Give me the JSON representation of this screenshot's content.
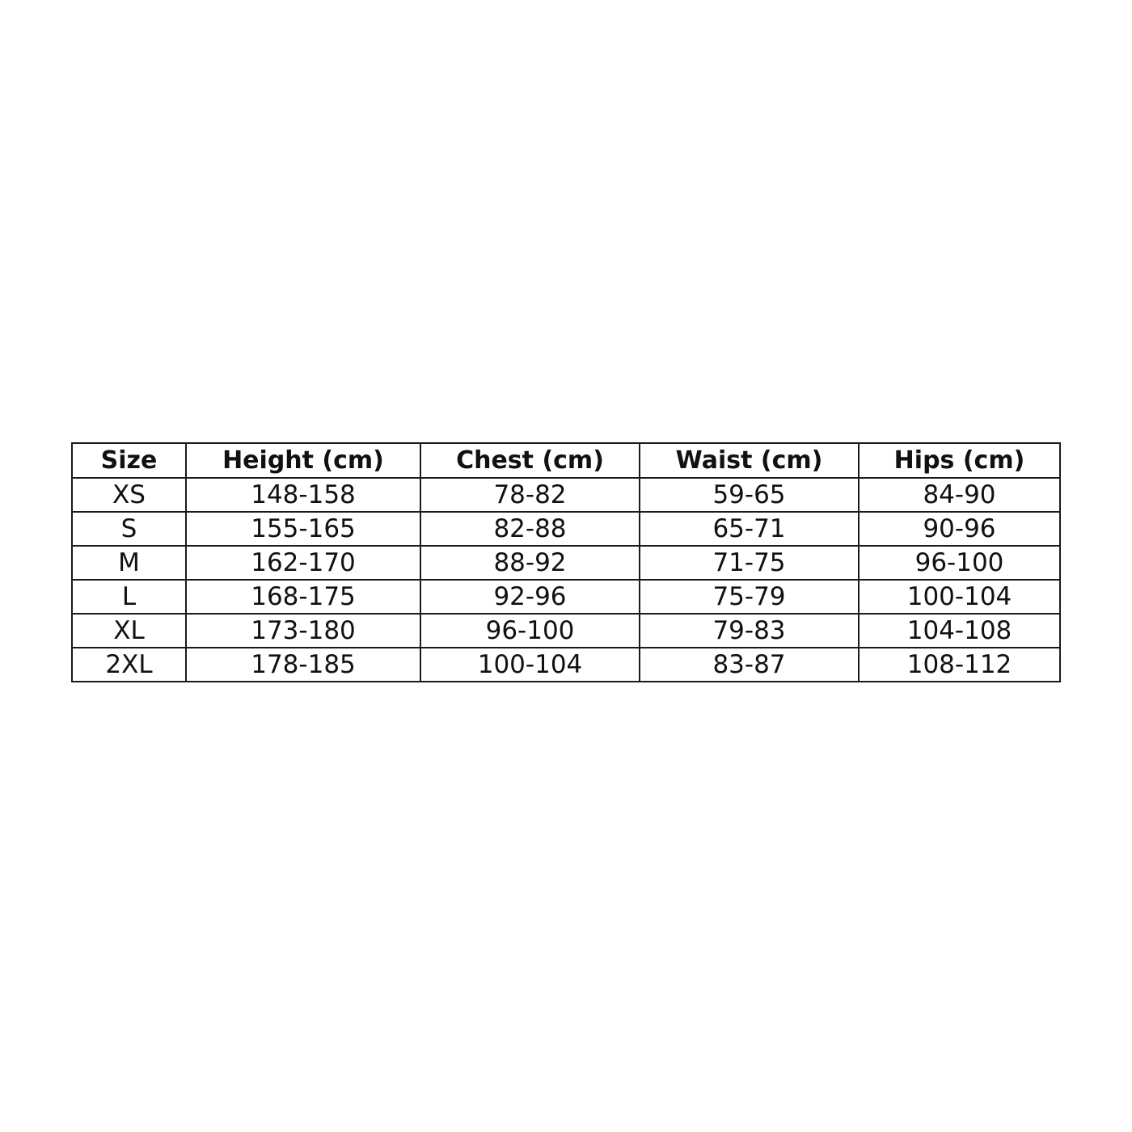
{
  "size_chart": {
    "headers": [
      "Size",
      "Height (cm)",
      "Chest (cm)",
      "Waist (cm)",
      "Hips (cm)"
    ],
    "rows": [
      [
        "XS",
        "148-158",
        "78-82",
        "59-65",
        "84-90"
      ],
      [
        "S",
        "155-165",
        "82-88",
        "65-71",
        "90-96"
      ],
      [
        "M",
        "162-170",
        "88-92",
        "71-75",
        "96-100"
      ],
      [
        "L",
        "168-175",
        "92-96",
        "75-79",
        "100-104"
      ],
      [
        "XL",
        "173-180",
        "96-100",
        "79-83",
        "104-108"
      ],
      [
        "2XL",
        "178-185",
        "100-104",
        "83-87",
        "108-112"
      ]
    ]
  }
}
